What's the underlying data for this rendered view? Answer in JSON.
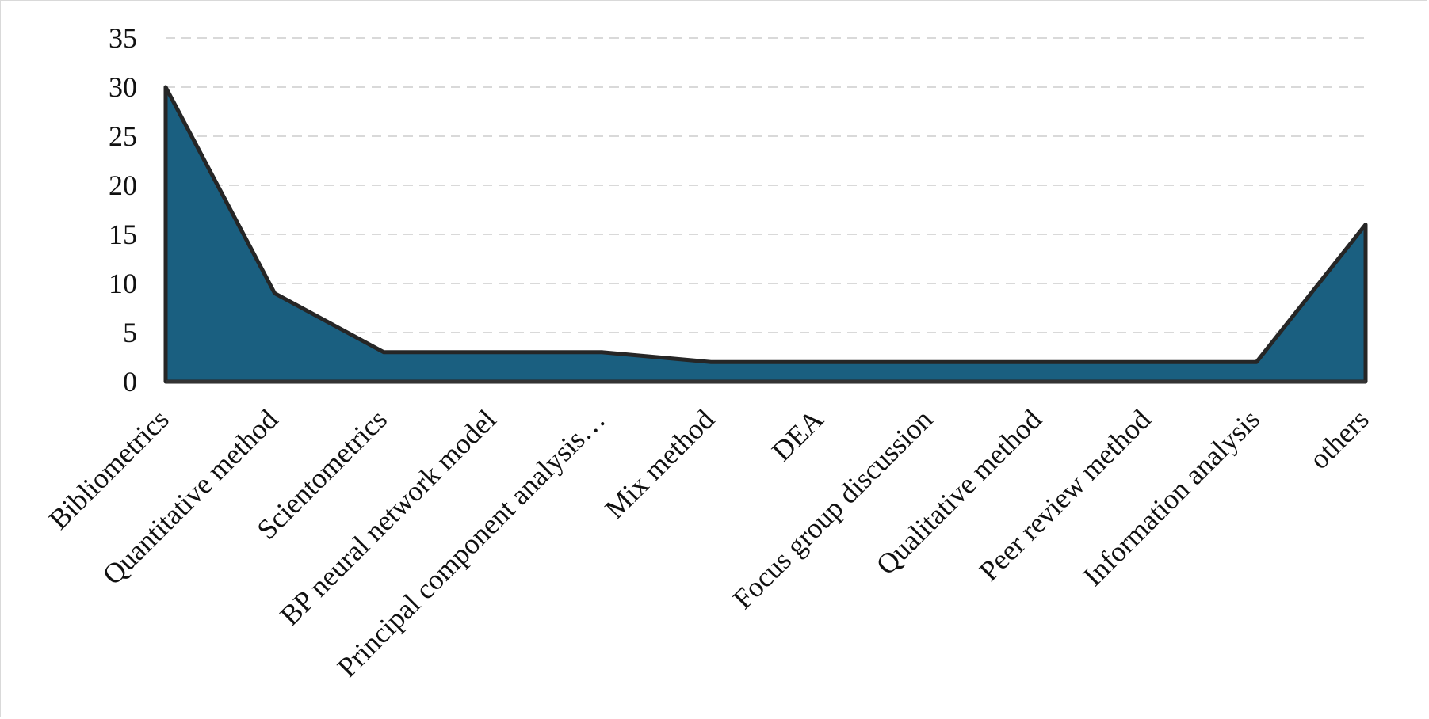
{
  "chart_data": {
    "type": "area",
    "title": "",
    "xlabel": "",
    "ylabel": "",
    "categories": [
      "Bibliometrics",
      "Quantitative method",
      "Scientometrics",
      "BP neural network model",
      "Principal component analysis…",
      "Mix method",
      "DEA",
      "Focus group discussion",
      "Qualitative method",
      "Peer review method",
      "Information analysis",
      "others"
    ],
    "values": [
      30,
      9,
      3,
      3,
      3,
      2,
      2,
      2,
      2,
      2,
      2,
      16
    ],
    "ylim": [
      0,
      35
    ],
    "yticks": [
      "0",
      "5",
      "10",
      "15",
      "20",
      "25",
      "30",
      "35"
    ],
    "grid": true,
    "legend": "none",
    "fill_color": "#1a5f80",
    "line_color": "#262626"
  }
}
